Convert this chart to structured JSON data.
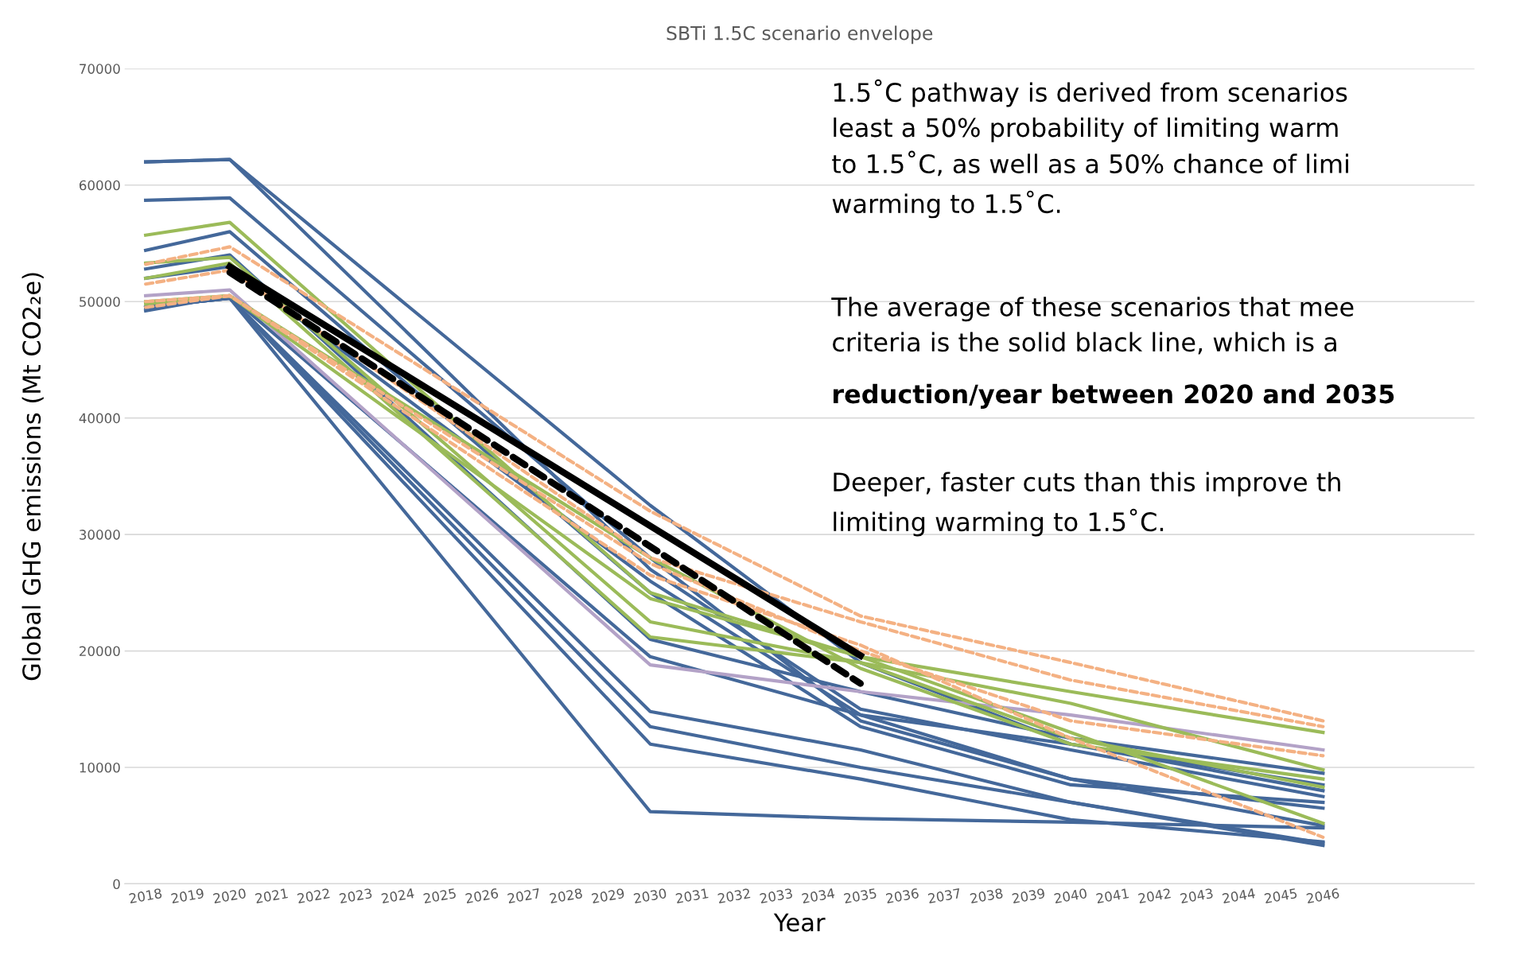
{
  "chart_data": {
    "type": "line",
    "title": "SBTi 1.5C scenario envelope",
    "xlabel": "Year",
    "ylabel": "Global GHG emissions (Mt CO2₂e)",
    "xlim": [
      2017.5,
      2049.6
    ],
    "xticks": [
      2018,
      2019,
      2020,
      2021,
      2022,
      2023,
      2024,
      2025,
      2026,
      2027,
      2028,
      2029,
      2030,
      2031,
      2032,
      2033,
      2034,
      2035,
      2036,
      2037,
      2038,
      2039,
      2040,
      2041,
      2042,
      2043,
      2044,
      2045,
      2046
    ],
    "ylim": [
      0,
      70000
    ],
    "yticks": [
      0,
      10000,
      20000,
      30000,
      40000,
      50000,
      60000,
      70000
    ],
    "grid": "y",
    "legend": false,
    "marker": "none",
    "series": [
      {
        "color": "#44689a",
        "line_style": "solid",
        "x": [
          2018,
          2020,
          2030,
          2035,
          2040,
          2046
        ],
        "values": [
          62000,
          62200,
          32500,
          19000,
          12000,
          8000
        ]
      },
      {
        "color": "#44689a",
        "line_style": "solid",
        "x": [
          2018,
          2020,
          2030,
          2035,
          2040,
          2046
        ],
        "values": [
          62000,
          62200,
          27000,
          15000,
          11500,
          7500
        ]
      },
      {
        "color": "#44689a",
        "line_style": "solid",
        "x": [
          2018,
          2020,
          2030,
          2035,
          2040,
          2046
        ],
        "values": [
          58700,
          58900,
          28000,
          14000,
          9000,
          6500
        ]
      },
      {
        "color": "#44689a",
        "line_style": "solid",
        "x": [
          2018,
          2020,
          2030,
          2035,
          2040,
          2046
        ],
        "values": [
          54400,
          56000,
          25000,
          13500,
          8500,
          7000
        ]
      },
      {
        "color": "#44689a",
        "line_style": "solid",
        "x": [
          2018,
          2020,
          2030,
          2035,
          2040,
          2046
        ],
        "values": [
          52800,
          54000,
          21000,
          16500,
          12500,
          9500
        ]
      },
      {
        "color": "#44689a",
        "line_style": "solid",
        "x": [
          2018,
          2020,
          2030,
          2035,
          2040,
          2046
        ],
        "values": [
          52000,
          53000,
          26000,
          14500,
          9000,
          5000
        ]
      },
      {
        "color": "#44689a",
        "line_style": "solid",
        "x": [
          2018,
          2020,
          2030,
          2035,
          2040,
          2046
        ],
        "values": [
          49200,
          50500,
          19500,
          14500,
          12000,
          8500
        ]
      },
      {
        "color": "#44689a",
        "line_style": "solid",
        "x": [
          2018,
          2020,
          2030,
          2035,
          2040,
          2046
        ],
        "values": [
          49500,
          50300,
          14800,
          11500,
          7000,
          3500
        ]
      },
      {
        "color": "#44689a",
        "line_style": "solid",
        "x": [
          2018,
          2020,
          2030,
          2035,
          2040,
          2046
        ],
        "values": [
          49500,
          50300,
          13500,
          10000,
          7000,
          3300
        ]
      },
      {
        "color": "#44689a",
        "line_style": "solid",
        "x": [
          2018,
          2020,
          2030,
          2035,
          2040,
          2046
        ],
        "values": [
          49500,
          50300,
          12000,
          9000,
          5500,
          3600
        ]
      },
      {
        "color": "#44689a",
        "line_style": "solid",
        "x": [
          2018,
          2020,
          2030,
          2035,
          2040,
          2046
        ],
        "values": [
          49500,
          50300,
          6200,
          5600,
          5300,
          4800
        ]
      },
      {
        "color": "#b3a2c7",
        "line_style": "solid",
        "x": [
          2018,
          2020,
          2030,
          2035,
          2040,
          2046
        ],
        "values": [
          50500,
          51000,
          18800,
          16500,
          14500,
          11500
        ]
      },
      {
        "color": "#9bbb59",
        "line_style": "solid",
        "x": [
          2018,
          2020,
          2030,
          2035,
          2040,
          2046
        ],
        "values": [
          55700,
          56800,
          25000,
          19500,
          16500,
          13000
        ]
      },
      {
        "color": "#9bbb59",
        "line_style": "solid",
        "x": [
          2018,
          2020,
          2030,
          2035,
          2040,
          2046
        ],
        "values": [
          53300,
          53800,
          22500,
          19000,
          15500,
          9800
        ]
      },
      {
        "color": "#9bbb59",
        "line_style": "solid",
        "x": [
          2018,
          2020,
          2030,
          2035,
          2040,
          2046
        ],
        "values": [
          52000,
          53300,
          21200,
          19000,
          12500,
          8300
        ]
      },
      {
        "color": "#9bbb59",
        "line_style": "solid",
        "x": [
          2018,
          2020,
          2030,
          2035,
          2040,
          2046
        ],
        "values": [
          50000,
          50500,
          24500,
          19500,
          13000,
          5200
        ]
      },
      {
        "color": "#9bbb59",
        "line_style": "solid",
        "x": [
          2018,
          2020,
          2030,
          2035,
          2040,
          2046
        ],
        "values": [
          49800,
          50500,
          28000,
          18500,
          12000,
          9000
        ]
      },
      {
        "color": "#f4b183",
        "line_style": "dashed",
        "x": [
          2018,
          2020,
          2030,
          2035,
          2040,
          2046
        ],
        "values": [
          53200,
          54700,
          32000,
          23000,
          19000,
          14000
        ]
      },
      {
        "color": "#f4b183",
        "line_style": "dashed",
        "x": [
          2018,
          2020,
          2030,
          2035,
          2040,
          2046
        ],
        "values": [
          51500,
          52700,
          28000,
          22500,
          17500,
          13500
        ]
      },
      {
        "color": "#f4b183",
        "line_style": "dashed",
        "x": [
          2018,
          2020,
          2030,
          2035,
          2040,
          2046
        ],
        "values": [
          50000,
          50500,
          27500,
          20000,
          14000,
          11000
        ]
      },
      {
        "color": "#f4b183",
        "line_style": "dashed",
        "x": [
          2018,
          2020,
          2030,
          2035,
          2040,
          2046
        ],
        "values": [
          49500,
          50500,
          26500,
          20500,
          12500,
          4000
        ]
      },
      {
        "color": "#000000",
        "line_style": "solid",
        "x": [
          2020,
          2035
        ],
        "values": [
          53000,
          19600
        ]
      },
      {
        "color": "#000000",
        "line_style": "dashed",
        "x": [
          2020,
          2035
        ],
        "values": [
          52500,
          17200
        ]
      }
    ],
    "annotations": [
      "1.5˚C pathway is derived from scenarios\nleast a 50% probability of limiting warm\nto 1.5˚C, as well as a 50% chance of limi\nwarming to 1.5˚C.",
      "The average of these scenarios that mee\ncriteria is the solid black line, which is a",
      "reduction/year between 2020 and 2035",
      "Deeper, faster cuts than this improve th\nlimiting warming to 1.5˚C."
    ]
  }
}
